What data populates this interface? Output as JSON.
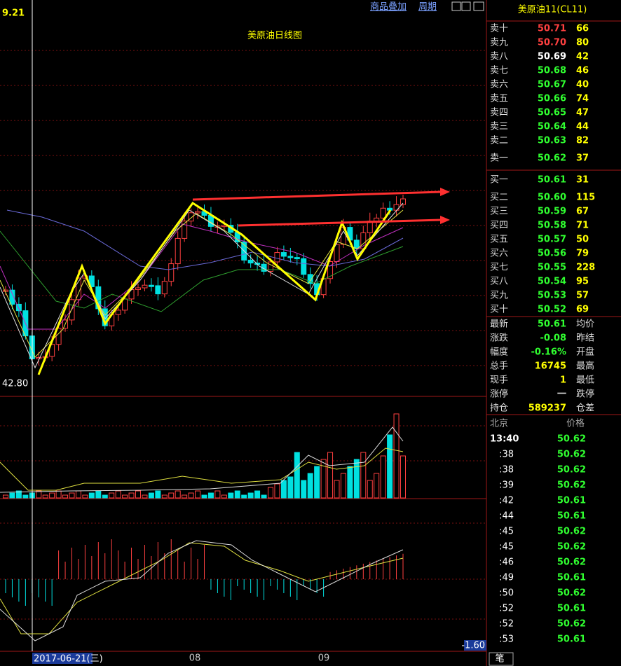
{
  "header": {
    "price_label": "9.21",
    "title": "美原油日线图",
    "links": [
      "商品叠加",
      "周期"
    ],
    "symbol": "美原油11(CL11)"
  },
  "chart": {
    "low_label": "42.80",
    "date_label": "2017-06-21(三)",
    "month_labels": [
      "08",
      "09"
    ],
    "macd_label": "-1.60"
  },
  "asks": [
    [
      "卖十",
      "50.71",
      "66"
    ],
    [
      "卖九",
      "50.70",
      "80"
    ],
    [
      "卖八",
      "50.69",
      "42"
    ],
    [
      "卖七",
      "50.68",
      "46"
    ],
    [
      "卖六",
      "50.67",
      "40"
    ],
    [
      "卖五",
      "50.66",
      "74"
    ],
    [
      "卖四",
      "50.65",
      "47"
    ],
    [
      "卖三",
      "50.64",
      "44"
    ],
    [
      "卖二",
      "50.63",
      "82"
    ],
    [
      "卖一",
      "50.62",
      "37"
    ]
  ],
  "bids": [
    [
      "买一",
      "50.61",
      "31"
    ],
    [
      "买二",
      "50.60",
      "115"
    ],
    [
      "买三",
      "50.59",
      "67"
    ],
    [
      "买四",
      "50.58",
      "71"
    ],
    [
      "买五",
      "50.57",
      "50"
    ],
    [
      "买六",
      "50.56",
      "79"
    ],
    [
      "买七",
      "50.55",
      "228"
    ],
    [
      "买八",
      "50.54",
      "95"
    ],
    [
      "买九",
      "50.53",
      "57"
    ],
    [
      "买十",
      "50.52",
      "69"
    ]
  ],
  "stats": [
    [
      "最新",
      "50.61",
      "均价"
    ],
    [
      "涨跌",
      "-0.08",
      "昨结"
    ],
    [
      "幅度",
      "-0.16%",
      "开盘"
    ],
    [
      "总手",
      "16745",
      "最高"
    ],
    [
      "现手",
      "1",
      "最低"
    ],
    [
      "涨停",
      "一",
      "跌停"
    ],
    [
      "持仓",
      "589237",
      "仓差"
    ]
  ],
  "ticks": {
    "header": [
      "北京",
      "价格"
    ],
    "rows": [
      [
        "13:40",
        "50.62"
      ],
      [
        ":38",
        "50.62"
      ],
      [
        ":38",
        "50.62"
      ],
      [
        ":39",
        "50.62"
      ],
      [
        ":42",
        "50.61"
      ],
      [
        ":44",
        "50.61"
      ],
      [
        ":45",
        "50.62"
      ],
      [
        ":45",
        "50.62"
      ],
      [
        ":46",
        "50.62"
      ],
      [
        ":49",
        "50.61"
      ],
      [
        ":50",
        "50.62"
      ],
      [
        ":52",
        "50.61"
      ],
      [
        ":52",
        "50.62"
      ],
      [
        ":53",
        "50.61"
      ]
    ]
  },
  "footer": {
    "tab": "笔"
  }
}
